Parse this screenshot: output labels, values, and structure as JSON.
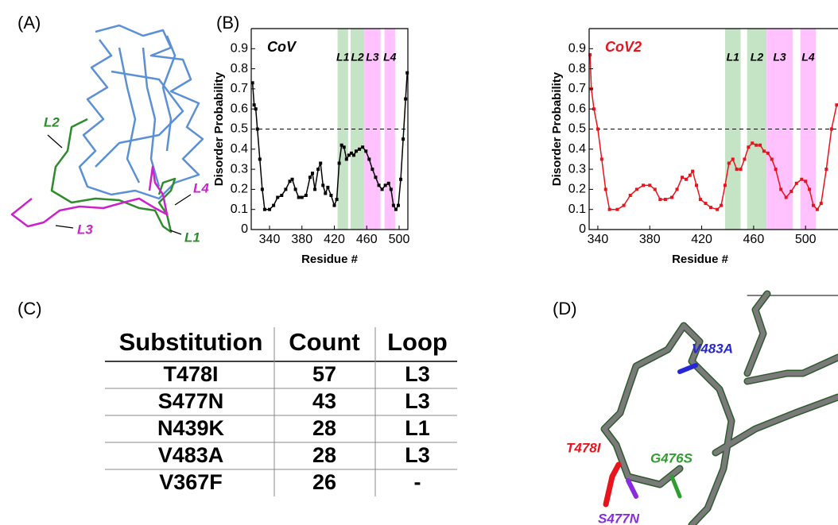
{
  "panels": {
    "a": "(A)",
    "b": "(B)",
    "c": "(C)",
    "d": "(D)"
  },
  "structure_a": {
    "labels": [
      "L2",
      "L3",
      "L4",
      "L1"
    ]
  },
  "structure_d": {
    "labels": [
      "V483A",
      "T478I",
      "G476S",
      "S477N"
    ]
  },
  "table": {
    "header": [
      "Substitution",
      "Count",
      "Loop"
    ],
    "rows": [
      [
        "T478I",
        "57",
        "L3"
      ],
      [
        "S477N",
        "43",
        "L3"
      ],
      [
        "N439K",
        "28",
        "L1"
      ],
      [
        "V483A",
        "28",
        "L3"
      ],
      [
        "V367F",
        "26",
        "-"
      ]
    ]
  },
  "chart_data": [
    {
      "type": "line",
      "title": "CoV",
      "title_color": "#000000",
      "x_label": "Residue #",
      "y_label": "Disorder Probability",
      "xlim": [
        317.4,
        510.8
      ],
      "ylim": [
        0,
        1
      ],
      "xticks": [
        340,
        380,
        420,
        460,
        500
      ],
      "yticks": [
        0,
        0.1,
        0.2,
        0.3,
        0.4,
        0.5,
        0.6,
        0.7,
        0.8,
        0.9
      ],
      "threshold": 0.5,
      "regions": [
        {
          "label": "L1",
          "start": 424,
          "end": 437,
          "color": "#c5e3c5"
        },
        {
          "label": "L2",
          "start": 440,
          "end": 457,
          "color": "#c5e3c5"
        },
        {
          "label": "L3",
          "start": 457,
          "end": 477,
          "color": "#ffc2ff"
        },
        {
          "label": "L4",
          "start": 482,
          "end": 495,
          "color": "#ffc2ff"
        }
      ],
      "x": [
        319,
        321,
        323,
        325,
        328,
        331,
        334,
        340,
        345,
        350,
        355,
        360,
        365,
        368,
        372,
        376,
        380,
        385,
        390,
        393,
        396,
        400,
        403,
        406,
        409,
        412,
        416,
        420,
        423,
        426,
        429,
        432,
        435,
        438,
        441,
        444,
        447,
        451,
        455,
        459,
        463,
        467,
        471,
        475,
        479,
        483,
        487,
        490,
        493,
        496,
        499,
        502,
        505,
        508,
        510
      ],
      "series": [
        {
          "name": "CoV",
          "color": "#000000",
          "values": [
            0.73,
            0.62,
            0.6,
            0.5,
            0.35,
            0.2,
            0.1,
            0.1,
            0.12,
            0.16,
            0.17,
            0.2,
            0.24,
            0.25,
            0.2,
            0.16,
            0.16,
            0.17,
            0.26,
            0.28,
            0.2,
            0.3,
            0.33,
            0.22,
            0.18,
            0.21,
            0.17,
            0.12,
            0.15,
            0.33,
            0.42,
            0.41,
            0.35,
            0.37,
            0.38,
            0.37,
            0.39,
            0.4,
            0.41,
            0.39,
            0.35,
            0.3,
            0.26,
            0.22,
            0.2,
            0.22,
            0.23,
            0.2,
            0.12,
            0.1,
            0.12,
            0.25,
            0.45,
            0.65,
            0.78
          ]
        }
      ]
    },
    {
      "type": "line",
      "title": "CoV2",
      "title_color": "#e8141c",
      "x_label": "Residue #",
      "y_label": "Disorder Probability",
      "xlim": [
        333.3,
        525
      ],
      "ylim": [
        0,
        1
      ],
      "xticks": [
        340,
        380,
        420,
        460,
        500
      ],
      "yticks": [
        0,
        0.1,
        0.2,
        0.3,
        0.4,
        0.5,
        0.6,
        0.7,
        0.8,
        0.9
      ],
      "threshold": 0.5,
      "regions": [
        {
          "label": "L1",
          "start": 438,
          "end": 450,
          "color": "#c5e3c5"
        },
        {
          "label": "L2",
          "start": 455,
          "end": 470,
          "color": "#c5e3c5"
        },
        {
          "label": "L3",
          "start": 470,
          "end": 490,
          "color": "#ffc2ff"
        },
        {
          "label": "L4",
          "start": 496,
          "end": 508,
          "color": "#ffc2ff"
        }
      ],
      "x": [
        334,
        335,
        337,
        340,
        343,
        346,
        349,
        355,
        360,
        365,
        370,
        375,
        380,
        384,
        388,
        392,
        397,
        401,
        405,
        408,
        411,
        413,
        416,
        419,
        423,
        427,
        432,
        435,
        438,
        441,
        444,
        447,
        450,
        453,
        456,
        459,
        462,
        465,
        468,
        471,
        474,
        477,
        481,
        485,
        489,
        493,
        497,
        500,
        503,
        506,
        509,
        512,
        516,
        520,
        524
      ],
      "series": [
        {
          "name": "CoV2",
          "color": "#e8141c",
          "values": [
            0.87,
            0.7,
            0.6,
            0.5,
            0.35,
            0.2,
            0.1,
            0.1,
            0.12,
            0.17,
            0.2,
            0.22,
            0.22,
            0.2,
            0.15,
            0.15,
            0.16,
            0.2,
            0.26,
            0.25,
            0.27,
            0.29,
            0.22,
            0.15,
            0.13,
            0.11,
            0.1,
            0.12,
            0.22,
            0.33,
            0.35,
            0.3,
            0.3,
            0.35,
            0.41,
            0.43,
            0.42,
            0.42,
            0.39,
            0.38,
            0.35,
            0.3,
            0.2,
            0.16,
            0.19,
            0.23,
            0.25,
            0.24,
            0.2,
            0.12,
            0.1,
            0.13,
            0.3,
            0.5,
            0.62
          ]
        }
      ]
    }
  ]
}
